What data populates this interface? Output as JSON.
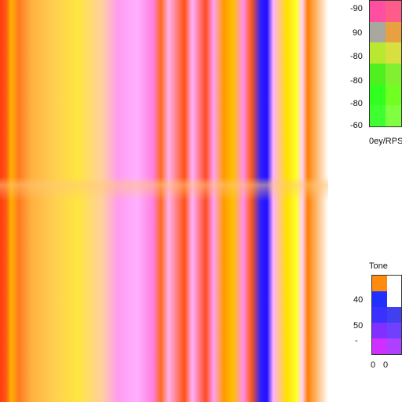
{
  "top_legend": {
    "labels": [
      "-90",
      "90",
      "-80",
      "-80",
      "-80",
      "-60"
    ],
    "caption": "0ey/RPS"
  },
  "bottom_legend": {
    "title": "Tone",
    "labels": [
      "40",
      "50",
      "-"
    ],
    "footer": [
      "0",
      "0"
    ]
  }
}
